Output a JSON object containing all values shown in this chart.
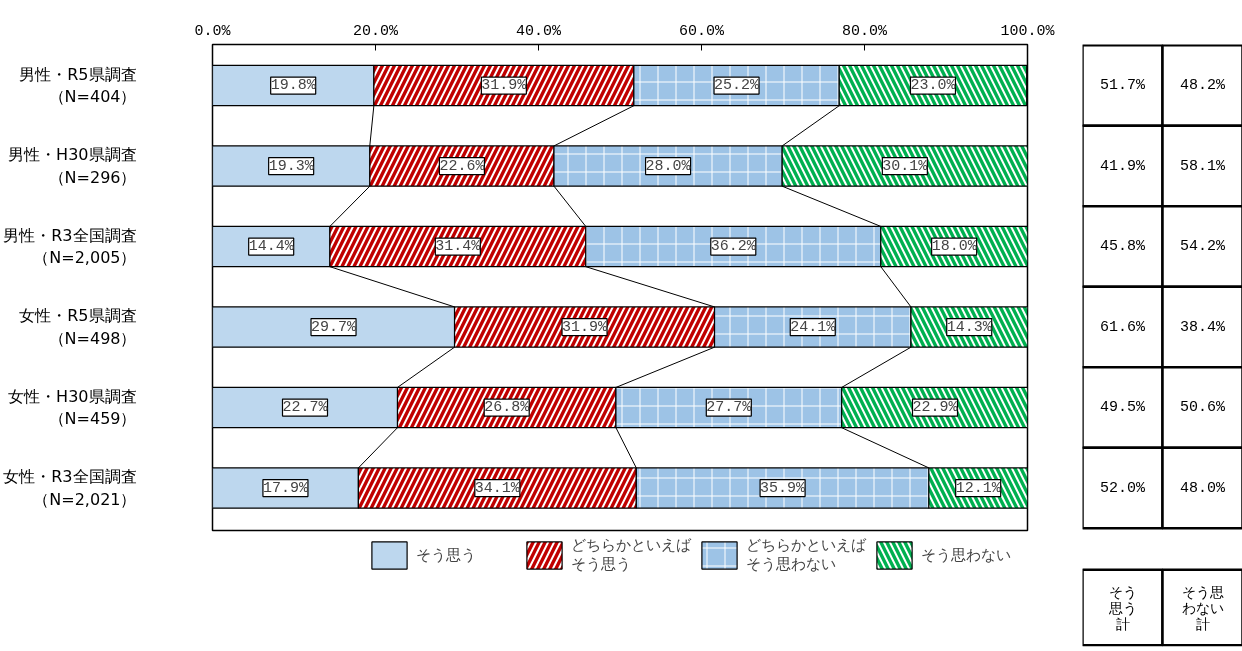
{
  "chart_data": [
    {
      "type": "bar",
      "orientation": "horizontal",
      "stacked": true,
      "legend": "bottom",
      "grid": false,
      "categories": [
        "男性・R5県調査（N=404）",
        "男性・H30県調査（N=296）",
        "男性・R3全国調査（N=2,005）",
        "女性・R5県調査（N=498）",
        "女性・H30県調査（N=459）",
        "女性・R3全国調査（N=2,021）"
      ],
      "xlim": [
        0,
        100
      ],
      "xticks": [
        {
          "value": 0,
          "label": "0.0%"
        },
        {
          "value": 20,
          "label": "20.0%"
        },
        {
          "value": 40,
          "label": "40.0%"
        },
        {
          "value": 60,
          "label": "60.0%"
        },
        {
          "value": 80,
          "label": "80.0%"
        },
        {
          "value": 100,
          "label": "100.0%"
        }
      ],
      "series": [
        {
          "name": "そう思う",
          "color": "#bdd7ee",
          "values": [
            19.8,
            19.3,
            14.4,
            29.7,
            22.7,
            17.9
          ],
          "value_labels": [
            "19.8%",
            "19.3%",
            "14.4%",
            "29.7%",
            "22.7%",
            "17.9%"
          ]
        },
        {
          "name": "どちらかといえばそう思う",
          "color": "#c00000",
          "values": [
            31.9,
            22.6,
            31.4,
            31.9,
            26.8,
            34.1
          ],
          "value_labels": [
            "31.9%",
            "22.6%",
            "31.4%",
            "31.9%",
            "26.8%",
            "34.1%"
          ]
        },
        {
          "name": "どちらかといえばそう思わない",
          "color": "#9dc3e6",
          "values": [
            25.2,
            28.0,
            36.2,
            24.1,
            27.7,
            35.9
          ],
          "value_labels": [
            "25.2%",
            "28.0%",
            "36.2%",
            "24.1%",
            "27.7%",
            "35.9%"
          ]
        },
        {
          "name": "そう思わない",
          "color": "#00b050",
          "values": [
            23.0,
            30.1,
            18.0,
            14.3,
            22.9,
            12.1
          ],
          "value_labels": [
            "23.0%",
            "30.1%",
            "18.0%",
            "14.3%",
            "22.9%",
            "12.1%"
          ]
        }
      ]
    },
    {
      "type": "other",
      "categories": [
        "そう思う計",
        "そう思わない計"
      ],
      "annotations": [
        "51.7%",
        "48.2%",
        "41.9%",
        "58.1%",
        "45.8%",
        "54.2%",
        "61.6%",
        "38.4%",
        "49.5%",
        "50.6%",
        "52.0%",
        "48.0%"
      ]
    }
  ]
}
